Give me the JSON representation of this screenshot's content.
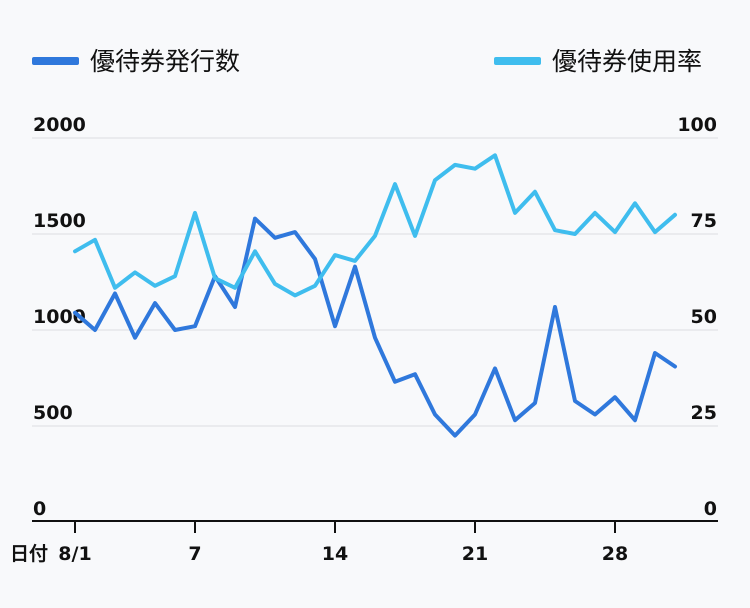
{
  "chart_data": {
    "type": "line",
    "legend": {
      "placement": "top",
      "items": [
        "優待券発行数",
        "優待券使用率"
      ]
    },
    "x": [
      "8/1",
      "8/2",
      "8/3",
      "8/4",
      "8/5",
      "8/6",
      "8/7",
      "8/8",
      "8/9",
      "8/10",
      "8/11",
      "8/12",
      "8/13",
      "8/14",
      "8/15",
      "8/16",
      "8/17",
      "8/18",
      "8/19",
      "8/20",
      "8/21",
      "8/22",
      "8/23",
      "8/24",
      "8/25",
      "8/26",
      "8/27",
      "8/28",
      "8/29",
      "8/30",
      "8/31"
    ],
    "x_ticks": [
      {
        "index": 0,
        "label": "8/1"
      },
      {
        "index": 6,
        "label": "7"
      },
      {
        "index": 13,
        "label": "14"
      },
      {
        "index": 20,
        "label": "21"
      },
      {
        "index": 27,
        "label": "28"
      }
    ],
    "xlabel": "日付",
    "y_left": {
      "ylim": [
        0,
        2000
      ],
      "ticks": [
        "0",
        "500",
        "1000",
        "1500",
        "2000"
      ]
    },
    "y_right": {
      "ylim": [
        0,
        100
      ],
      "ticks": [
        "0",
        "25",
        "50",
        "75",
        "100"
      ]
    },
    "grid": true,
    "series": [
      {
        "name": "優待券発行数",
        "axis": "left",
        "color": "#2f78dc",
        "values": [
          1090,
          1000,
          1190,
          960,
          1140,
          1000,
          1020,
          1280,
          1120,
          1580,
          1480,
          1510,
          1370,
          1020,
          1330,
          960,
          730,
          770,
          560,
          450,
          560,
          800,
          530,
          620,
          1120,
          630,
          560,
          650,
          530,
          880,
          810
        ]
      },
      {
        "name": "優待券使用率",
        "axis": "right",
        "color": "#3fbdee",
        "values": [
          70.5,
          73.5,
          61,
          65,
          61.5,
          64,
          80.5,
          63.5,
          61,
          70.5,
          62,
          59,
          61.5,
          69.5,
          68,
          74.5,
          88,
          74.5,
          89,
          93,
          92,
          95.5,
          80.5,
          86,
          76,
          75,
          80.5,
          75.5,
          83,
          75.5,
          80
        ]
      }
    ]
  }
}
